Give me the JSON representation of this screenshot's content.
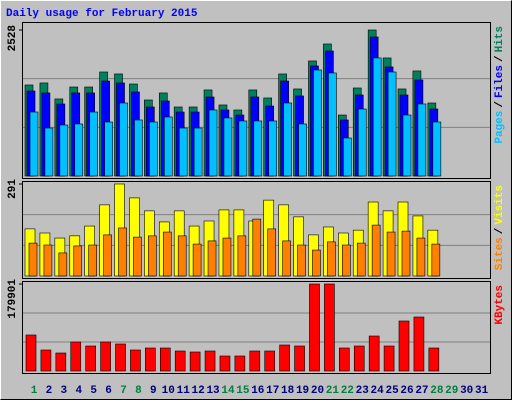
{
  "chart_data": [
    {
      "type": "bar",
      "title": "Daily usage for February 2015",
      "ylim": [
        0,
        2528
      ],
      "yticks": [
        2528
      ],
      "grid_divisions": 3,
      "legend_separator": "/",
      "series": [
        {
          "name": "Hits",
          "color": "#00805c",
          "values": [
            1576,
            1611,
            1334,
            1541,
            1541,
            1801,
            1767,
            1593,
            1316,
            1438,
            1195,
            1195,
            1490,
            1230,
            1143,
            1490,
            1351,
            1767,
            1507,
            1992,
            2286,
            1056,
            1524,
            2528,
            2044,
            1507,
            1819,
            1264,
            null,
            null,
            null
          ]
        },
        {
          "name": "Files",
          "color": "#0000ff",
          "values": [
            1472,
            1438,
            1247,
            1438,
            1438,
            1645,
            1611,
            1455,
            1195,
            1299,
            1108,
            1108,
            1368,
            1143,
            1056,
            1368,
            1212,
            1645,
            1386,
            1905,
            2165,
            970,
            1403,
            2407,
            1888,
            1403,
            1663,
            1160,
            null,
            null,
            null
          ]
        },
        {
          "name": "Pages",
          "color": "#00c0ff",
          "values": [
            1108,
            831,
            883,
            901,
            1108,
            935,
            1264,
            970,
            935,
            1022,
            831,
            831,
            1143,
            1005,
            953,
            953,
            953,
            1264,
            901,
            1836,
            1784,
            658,
            1160,
            2044,
            1801,
            1056,
            1247,
            935,
            null,
            null,
            null
          ]
        }
      ]
    },
    {
      "type": "bar",
      "ylim": [
        0,
        291
      ],
      "yticks": [
        291
      ],
      "grid_divisions": 3,
      "legend_separator": "/",
      "series": [
        {
          "name": "Visits",
          "color": "#ffff00",
          "values": [
            149,
            136,
            120,
            127,
            158,
            225,
            291,
            247,
            206,
            171,
            206,
            158,
            174,
            209,
            209,
            174,
            240,
            225,
            187,
            130,
            155,
            136,
            145,
            234,
            206,
            234,
            190,
            145,
            null,
            null,
            null
          ]
        },
        {
          "name": "Sites",
          "color": "#ff8000",
          "values": [
            104,
            98,
            73,
            95,
            98,
            130,
            152,
            123,
            127,
            139,
            127,
            101,
            111,
            120,
            127,
            180,
            149,
            111,
            98,
            82,
            108,
            98,
            104,
            161,
            139,
            142,
            120,
            101,
            null,
            null,
            null
          ]
        }
      ]
    },
    {
      "type": "bar",
      "ylim": [
        0,
        179901
      ],
      "yticks": [
        179901
      ],
      "grid_divisions": 3,
      "categories": [
        "1",
        "2",
        "3",
        "4",
        "5",
        "6",
        "7",
        "8",
        "9",
        "10",
        "11",
        "12",
        "13",
        "14",
        "15",
        "16",
        "17",
        "18",
        "19",
        "20",
        "21",
        "22",
        "23",
        "24",
        "25",
        "26",
        "27",
        "28",
        "29",
        "30",
        "31"
      ],
      "category_colors": [
        "#008040",
        "#000080",
        "#000080",
        "#000080",
        "#000080",
        "#000080",
        "#008040",
        "#008040",
        "#000080",
        "#000080",
        "#000080",
        "#000080",
        "#000080",
        "#008040",
        "#008040",
        "#000080",
        "#000080",
        "#000080",
        "#000080",
        "#000080",
        "#008040",
        "#008040",
        "#000080",
        "#000080",
        "#000080",
        "#000080",
        "#000080",
        "#008040",
        "#008040",
        "#000080",
        "#000080"
      ],
      "series": [
        {
          "name": "KBytes",
          "color": "#ff0000",
          "values": [
            74448,
            43428,
            37224,
            59972,
            51700,
            59972,
            55836,
            43428,
            47564,
            47564,
            41360,
            39292,
            41360,
            31020,
            31020,
            41360,
            41360,
            53768,
            51700,
            179901,
            179901,
            47564,
            51700,
            72380,
            51700,
            103400,
            111672,
            47564,
            null,
            null,
            null
          ]
        }
      ]
    }
  ]
}
